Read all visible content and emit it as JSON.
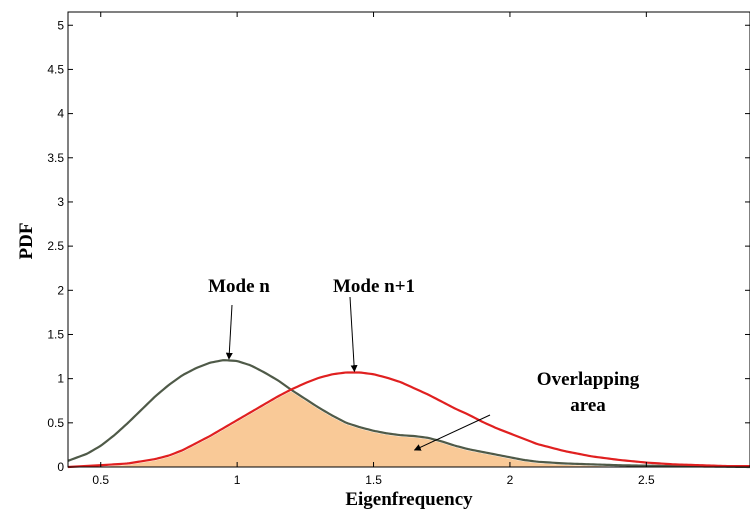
{
  "chart_data": {
    "type": "line",
    "title": "",
    "xlabel": "Eigenfrequency",
    "ylabel": "PDF",
    "xlim": [
      0.38,
      2.88
    ],
    "ylim": [
      0,
      5.15
    ],
    "xticks": [
      0.5,
      1,
      1.5,
      2,
      2.5
    ],
    "xtick_labels": [
      "0.5",
      "1",
      "1.5",
      "2",
      "2.5"
    ],
    "yticks": [
      0,
      0.5,
      1,
      1.5,
      2,
      2.5,
      3,
      3.5,
      4,
      4.5,
      5
    ],
    "ytick_labels": [
      "0",
      "0.5",
      "1",
      "1.5",
      "2",
      "2.5",
      "3",
      "3.5",
      "4",
      "4.5",
      "5"
    ],
    "grid": false,
    "series": [
      {
        "name": "Mode n",
        "color": "#4f5a48",
        "x": [
          0.38,
          0.45,
          0.5,
          0.55,
          0.6,
          0.65,
          0.7,
          0.75,
          0.8,
          0.85,
          0.9,
          0.95,
          1.0,
          1.05,
          1.1,
          1.15,
          1.2,
          1.25,
          1.3,
          1.35,
          1.4,
          1.45,
          1.5,
          1.55,
          1.6,
          1.65,
          1.7,
          1.75,
          1.8,
          1.85,
          1.9,
          1.95,
          2.0,
          2.05,
          2.1,
          2.2,
          2.3,
          2.4,
          2.6,
          2.88
        ],
        "y": [
          0.07,
          0.15,
          0.24,
          0.36,
          0.5,
          0.65,
          0.8,
          0.93,
          1.04,
          1.12,
          1.18,
          1.21,
          1.2,
          1.15,
          1.07,
          0.98,
          0.87,
          0.77,
          0.67,
          0.58,
          0.5,
          0.45,
          0.41,
          0.38,
          0.36,
          0.35,
          0.33,
          0.29,
          0.24,
          0.2,
          0.17,
          0.14,
          0.11,
          0.08,
          0.06,
          0.04,
          0.03,
          0.02,
          0.01,
          0.0
        ]
      },
      {
        "name": "Mode n+1",
        "color": "#e02020",
        "x": [
          0.38,
          0.5,
          0.6,
          0.7,
          0.75,
          0.8,
          0.85,
          0.9,
          0.95,
          1.0,
          1.05,
          1.1,
          1.15,
          1.2,
          1.25,
          1.3,
          1.35,
          1.4,
          1.45,
          1.5,
          1.55,
          1.6,
          1.65,
          1.7,
          1.75,
          1.8,
          1.85,
          1.9,
          1.95,
          2.0,
          2.05,
          2.1,
          2.2,
          2.3,
          2.4,
          2.5,
          2.6,
          2.7,
          2.8,
          2.88
        ],
        "y": [
          0.0,
          0.02,
          0.04,
          0.09,
          0.13,
          0.19,
          0.27,
          0.35,
          0.44,
          0.53,
          0.62,
          0.71,
          0.8,
          0.88,
          0.95,
          1.01,
          1.05,
          1.07,
          1.07,
          1.05,
          1.01,
          0.96,
          0.89,
          0.82,
          0.74,
          0.66,
          0.59,
          0.51,
          0.44,
          0.38,
          0.32,
          0.26,
          0.18,
          0.12,
          0.08,
          0.05,
          0.03,
          0.02,
          0.01,
          0.01
        ]
      }
    ],
    "fill_between": {
      "type": "overlap-minimum",
      "color": "#f9c997",
      "edge_color": "#ffffff"
    },
    "annotations": [
      {
        "text": "Mode n",
        "arrow_to": [
          0.97,
          1.21
        ]
      },
      {
        "text": "Mode n+1",
        "arrow_to": [
          1.43,
          1.07
        ]
      },
      {
        "text": "Overlapping",
        "arrow_to": [
          1.65,
          0.18
        ]
      },
      {
        "text": "area"
      }
    ]
  }
}
